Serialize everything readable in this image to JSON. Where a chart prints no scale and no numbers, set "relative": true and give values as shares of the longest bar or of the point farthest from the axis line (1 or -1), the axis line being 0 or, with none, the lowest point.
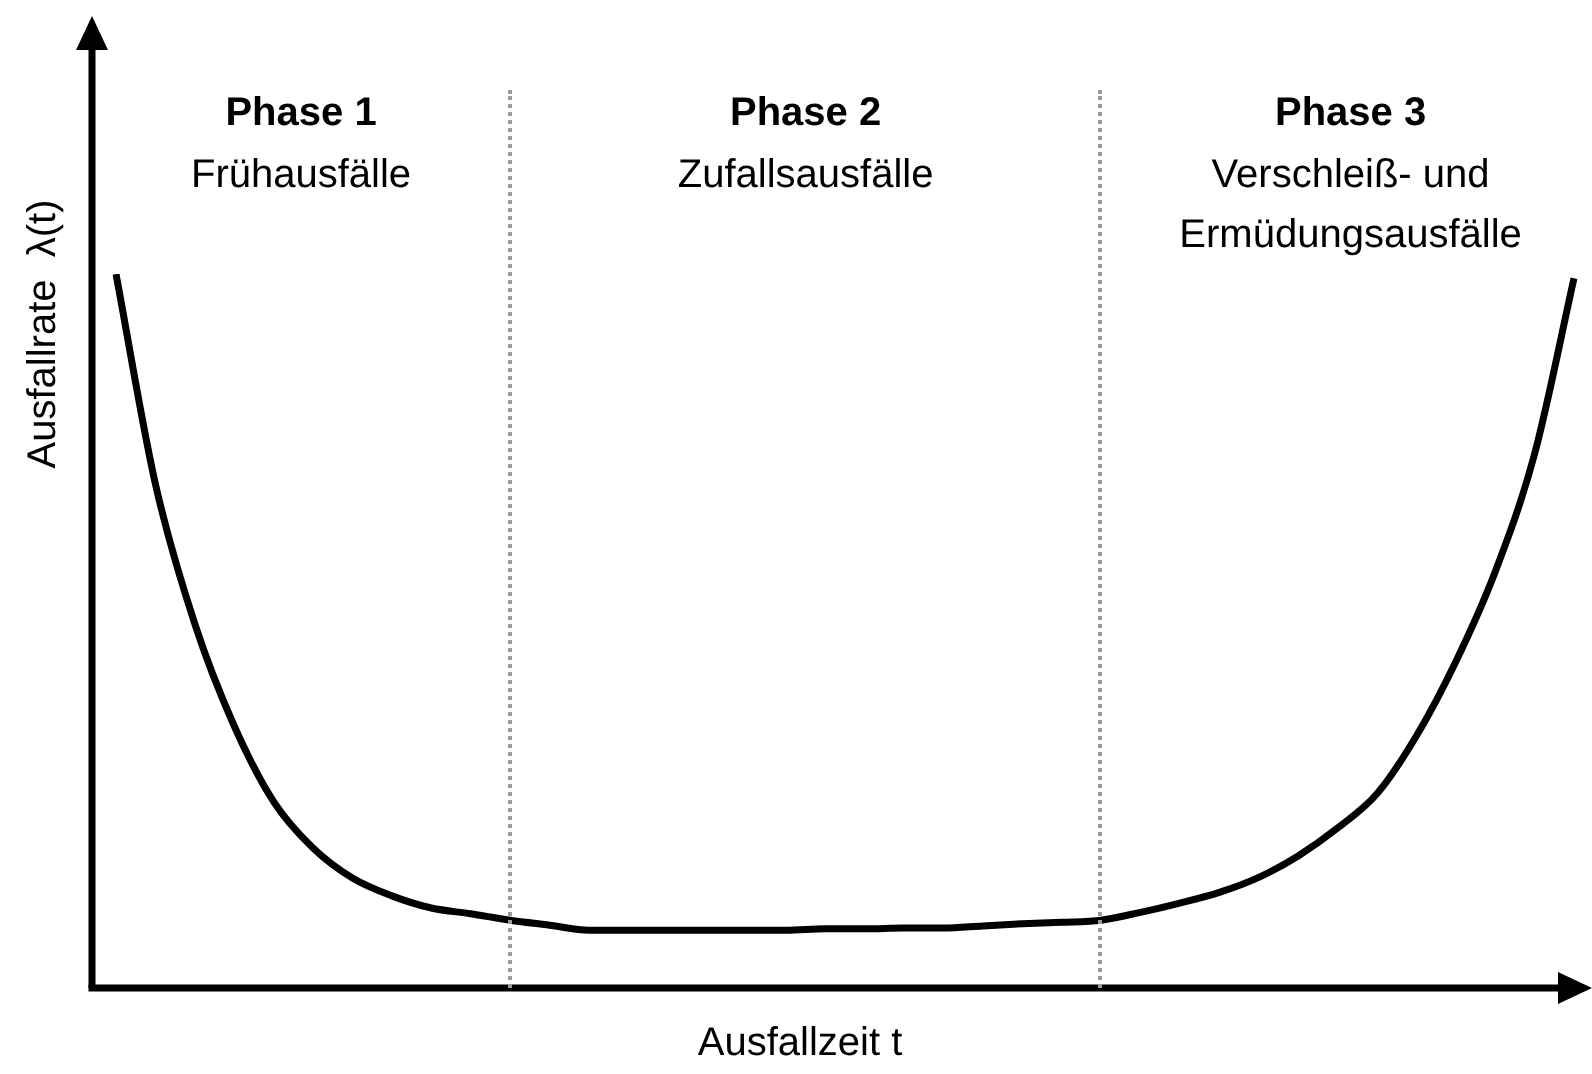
{
  "chart_data": {
    "type": "line",
    "relative": true,
    "xlabel": "Ausfallzeit t",
    "ylabel": "Ausfallrate  λ(t)",
    "categories": [
      null,
      null,
      null,
      null,
      null,
      null,
      null,
      null,
      null,
      null,
      null,
      null,
      null,
      null,
      null,
      null,
      null,
      null,
      null,
      null,
      null,
      null,
      null,
      null,
      null,
      null,
      null,
      null,
      null,
      null,
      null,
      null,
      null,
      null,
      null,
      null,
      null,
      null
    ],
    "series": [
      {
        "color": "#000000",
        "values": [
          1.0,
          0.706,
          0.51,
          0.367,
          0.261,
          0.196,
          0.154,
          0.129,
          0.112,
          0.104,
          0.095,
          0.088,
          0.081,
          0.081,
          0.081,
          0.081,
          0.081,
          0.081,
          0.083,
          0.083,
          0.084,
          0.084,
          0.087,
          0.09,
          0.092,
          0.095,
          0.106,
          0.119,
          0.134,
          0.155,
          0.185,
          0.224,
          0.272,
          0.353,
          0.457,
          0.583,
          0.748,
          0.994
        ]
      }
    ],
    "annotations": [
      "Phase 1",
      "Frühausfälle",
      "Phase 2",
      "Zufallsausfälle",
      "Phase 3",
      "Verschleiß- und\nErmüdungsausfälle"
    ]
  }
}
